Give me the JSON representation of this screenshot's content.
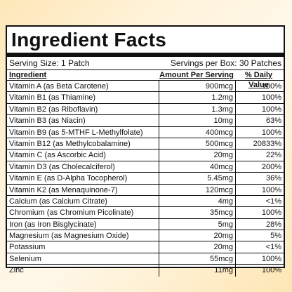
{
  "title": "Ingredient Facts",
  "serving_size": "Serving Size: 1 Patch",
  "servings_per_box": "Servings per Box: 30 Patches",
  "columns": [
    "Ingredient",
    "Amount Per Serving",
    "% Daily Value"
  ],
  "rows": [
    {
      "name": "Vitamin A (as Beta Carotene)",
      "amount": "900mcg",
      "dv": "100%"
    },
    {
      "name": "Vitamin B1 (as Thiamine)",
      "amount": "1.2mg",
      "dv": "100%"
    },
    {
      "name": "Vitamin B2 (as Riboflavin)",
      "amount": "1.3mg",
      "dv": "100%"
    },
    {
      "name": "Vitamin B3 (as Niacin)",
      "amount": "10mg",
      "dv": "63%"
    },
    {
      "name": "Vitamin B9 (as 5-MTHF L-Methylfolate)",
      "amount": "400mcg",
      "dv": "100%"
    },
    {
      "name": "Vitamin B12 (as Methylcobalamine)",
      "amount": "500mcg",
      "dv": "20833%"
    },
    {
      "name": "Vitamin C (as Ascorbic Acid)",
      "amount": "20mg",
      "dv": "22%"
    },
    {
      "name": "Vitamin D3 (as Cholecalciferol)",
      "amount": "40mcg",
      "dv": "200%"
    },
    {
      "name": "Vitamin E (as D-Alpha Tocopherol)",
      "amount": "5.45mg",
      "dv": "36%"
    },
    {
      "name": "Vitamin K2 (as Menaquinone-7)",
      "amount": "120mcg",
      "dv": "100%"
    },
    {
      "name": "Calcium (as Calcium Citrate)",
      "amount": "4mg",
      "dv": "<1%"
    },
    {
      "name": "Chromium (as Chromium Picolinate)",
      "amount": "35mcg",
      "dv": "100%"
    },
    {
      "name": "Iron (as Iron Bisglycinate)",
      "amount": "5mg",
      "dv": "28%"
    },
    {
      "name": "Magnesium (as Magnesium Oxide)",
      "amount": "20mg",
      "dv": "5%"
    },
    {
      "name": "Potassium",
      "amount": "20mg",
      "dv": "<1%"
    },
    {
      "name": "Selenium",
      "amount": "55mcg",
      "dv": "100%"
    },
    {
      "name": "Zinc",
      "amount": "11mg",
      "dv": "100%"
    }
  ]
}
